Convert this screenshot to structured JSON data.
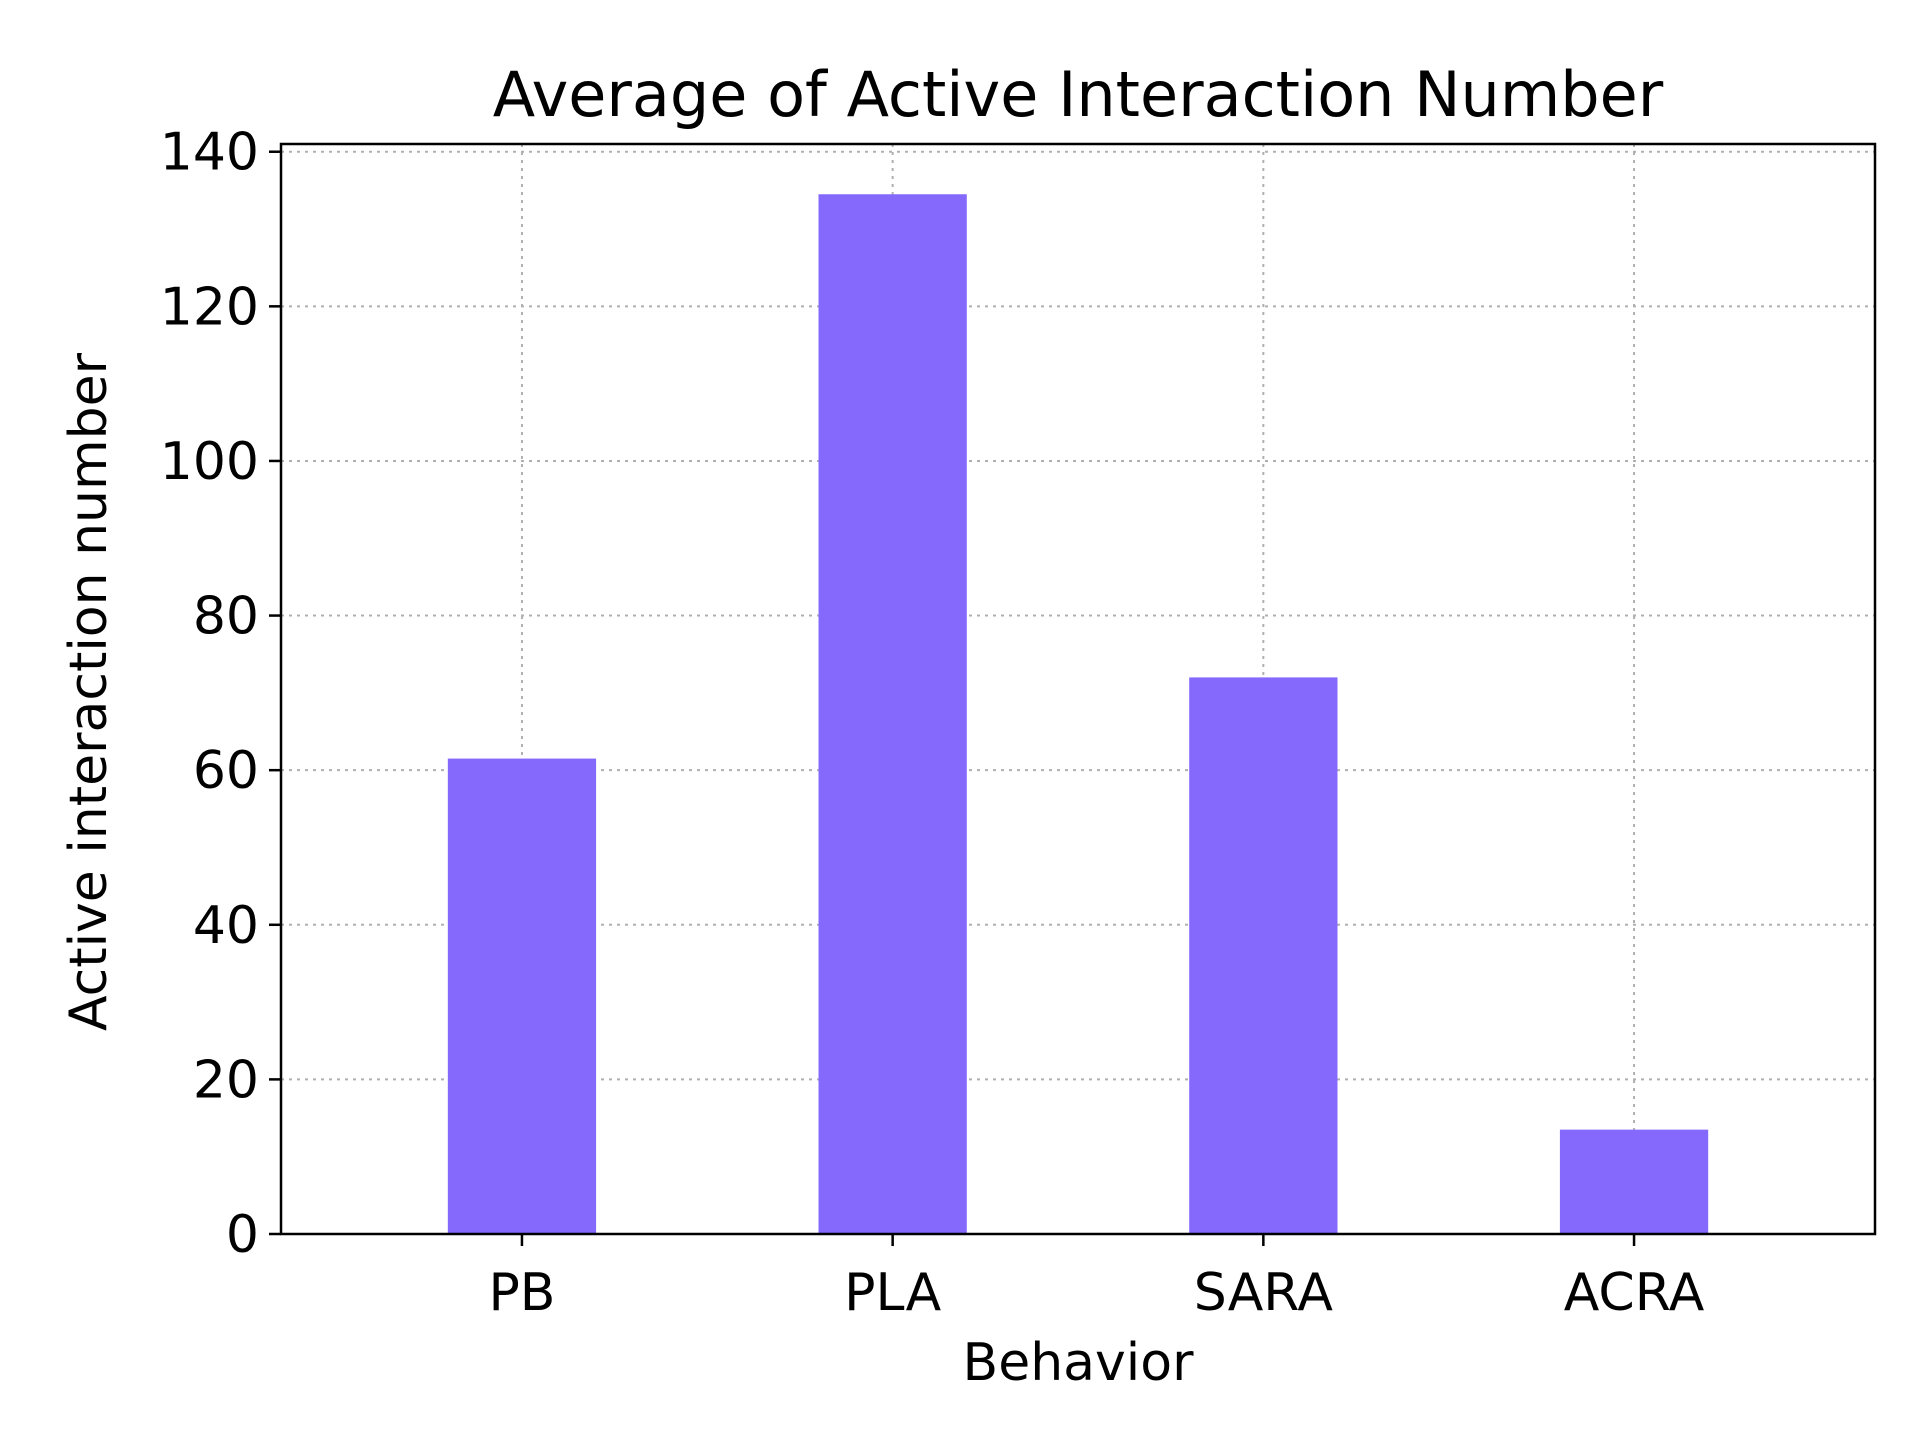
{
  "chart_data": {
    "type": "bar",
    "title": "Average of Active Interaction Number",
    "xlabel": "Behavior",
    "ylabel": "Active interaction number",
    "categories": [
      "PB",
      "PLA",
      "SARA",
      "ACRA"
    ],
    "values": [
      61.5,
      134.5,
      72,
      13.5
    ],
    "ylim": [
      0,
      141
    ],
    "yticks": [
      0,
      20,
      40,
      60,
      80,
      100,
      120,
      140
    ],
    "grid": true,
    "bar_color": "#8469fc"
  }
}
